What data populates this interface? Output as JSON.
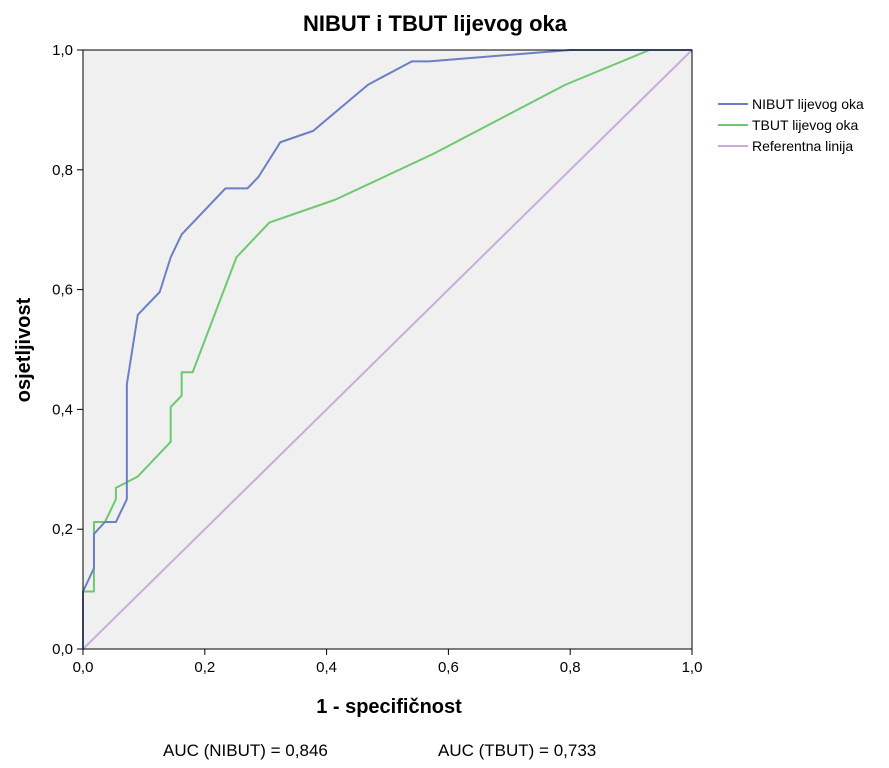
{
  "chart_data": {
    "type": "line",
    "title": "NIBUT i TBUT lijevog oka",
    "xlabel": "1 - specifičnost",
    "ylabel": "osjetljivost",
    "xlim": [
      0,
      1
    ],
    "ylim": [
      0,
      1
    ],
    "xticks": [
      "0,0",
      "0,2",
      "0,4",
      "0,6",
      "0,8",
      "1,0"
    ],
    "yticks": [
      "0,0",
      "0,2",
      "0,4",
      "0,6",
      "0,8",
      "1,0"
    ],
    "grid": false,
    "legend_position": "right",
    "series": [
      {
        "name": "NIBUT lijevog oka",
        "color": "#6b7fc4",
        "points": [
          [
            0,
            0
          ],
          [
            0,
            0.096
          ],
          [
            0.018,
            0.135
          ],
          [
            0.018,
            0.192
          ],
          [
            0.036,
            0.212
          ],
          [
            0.054,
            0.212
          ],
          [
            0.072,
            0.25
          ],
          [
            0.072,
            0.442
          ],
          [
            0.09,
            0.558
          ],
          [
            0.126,
            0.596
          ],
          [
            0.144,
            0.654
          ],
          [
            0.162,
            0.692
          ],
          [
            0.234,
            0.769
          ],
          [
            0.27,
            0.769
          ],
          [
            0.288,
            0.788
          ],
          [
            0.324,
            0.846
          ],
          [
            0.378,
            0.865
          ],
          [
            0.468,
            0.942
          ],
          [
            0.54,
            0.981
          ],
          [
            0.568,
            0.981
          ],
          [
            0.8,
            1.0
          ],
          [
            1.0,
            1.0
          ]
        ]
      },
      {
        "name": "TBUT lijevog oka",
        "color": "#6dc96d",
        "points": [
          [
            0,
            0
          ],
          [
            0,
            0.096
          ],
          [
            0.018,
            0.096
          ],
          [
            0.018,
            0.212
          ],
          [
            0.036,
            0.212
          ],
          [
            0.054,
            0.25
          ],
          [
            0.054,
            0.269
          ],
          [
            0.09,
            0.288
          ],
          [
            0.144,
            0.346
          ],
          [
            0.144,
            0.404
          ],
          [
            0.162,
            0.423
          ],
          [
            0.162,
            0.462
          ],
          [
            0.18,
            0.462
          ],
          [
            0.252,
            0.654
          ],
          [
            0.306,
            0.712
          ],
          [
            0.414,
            0.75
          ],
          [
            0.576,
            0.827
          ],
          [
            0.792,
            0.942
          ],
          [
            0.93,
            1.0
          ],
          [
            1.0,
            1.0
          ]
        ]
      },
      {
        "name": "Referentna linija",
        "color": "#c9acd8",
        "points": [
          [
            0,
            0
          ],
          [
            1,
            1
          ]
        ]
      }
    ],
    "annotations": [
      "AUC (NIBUT) = 0,846",
      "AUC (TBUT) = 0,733"
    ],
    "plot_background": "#f0f0f0"
  }
}
